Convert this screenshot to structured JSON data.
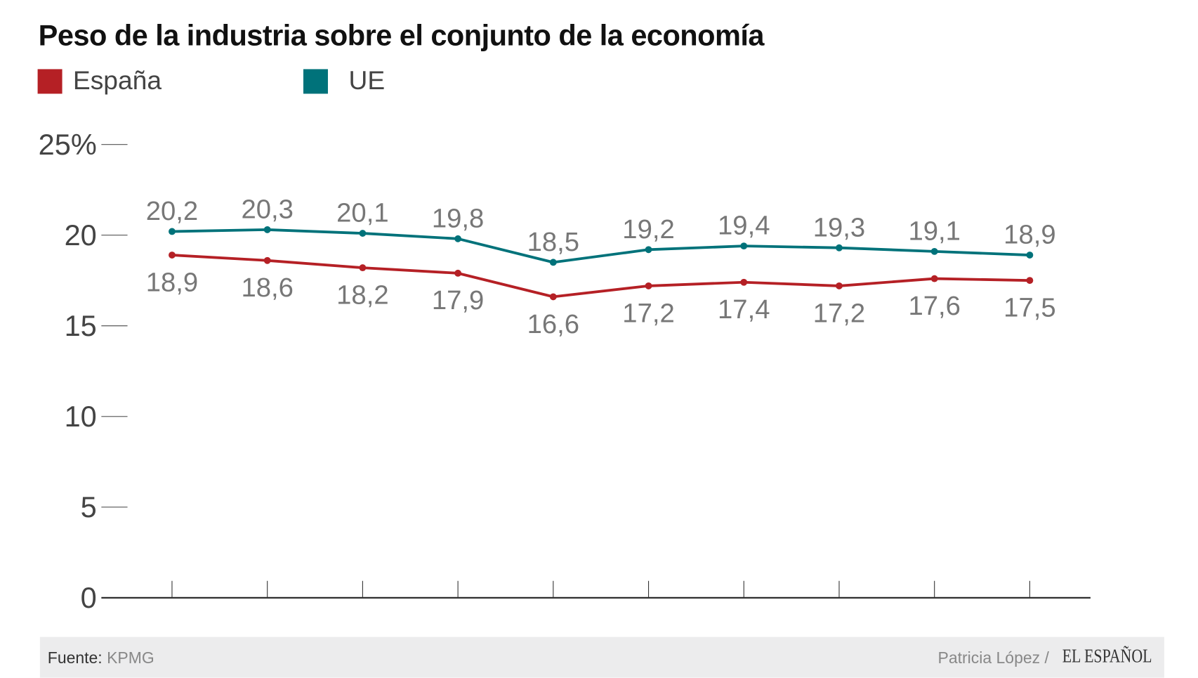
{
  "chart_data": {
    "type": "line",
    "title": "Peso de la industria sobre el conjunto de la economía",
    "categories": [
      "",
      "",
      "",
      "",
      "",
      "",
      "",
      "",
      "",
      ""
    ],
    "series": [
      {
        "name": "España",
        "color": "#b52025",
        "values": [
          18.9,
          18.6,
          18.2,
          17.9,
          16.6,
          17.2,
          17.4,
          17.2,
          17.6,
          17.5
        ],
        "labels": [
          "18,9",
          "18,6",
          "18,2",
          "17,9",
          "16,6",
          "17,2",
          "17,4",
          "17,2",
          "17,6",
          "17,5"
        ]
      },
      {
        "name": "UE",
        "color": "#00727a",
        "values": [
          20.2,
          20.3,
          20.1,
          19.8,
          18.5,
          19.2,
          19.4,
          19.3,
          19.1,
          18.9
        ],
        "labels": [
          "20,2",
          "20,3",
          "20,1",
          "19,8",
          "18,5",
          "19,2",
          "19,4",
          "19,3",
          "19,1",
          "18,9"
        ]
      }
    ],
    "ylim": [
      0,
      25
    ],
    "yticks": [
      0,
      5,
      10,
      15,
      20,
      25
    ],
    "ytick_labels": [
      "0",
      "5",
      "10",
      "15",
      "20",
      "25%"
    ],
    "grid": false,
    "legend": "top-left"
  },
  "footer": {
    "source_label": "Fuente:",
    "source": "KPMG",
    "credit": "Patricia López /",
    "logo": "EL ESPAÑOL"
  }
}
